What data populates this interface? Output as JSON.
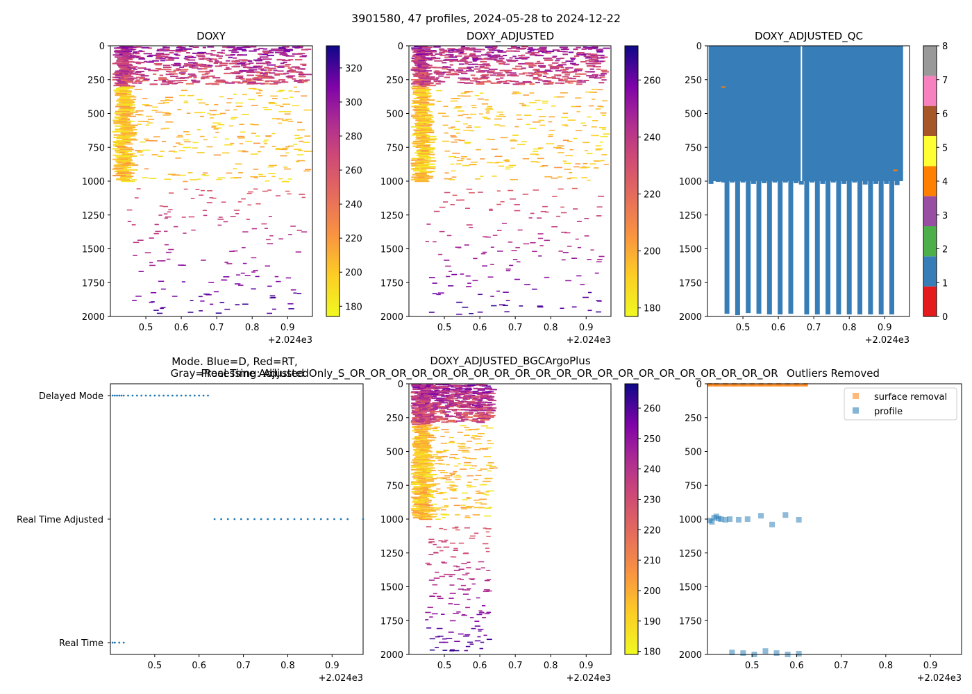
{
  "suptitle": "3901580, 47 profiles, 2024-05-28 to 2024-12-22",
  "offset_label": "+2.024e3",
  "x_ticks": [
    "0.5",
    "0.6",
    "0.7",
    "0.8",
    "0.9"
  ],
  "y_ticks": [
    "0",
    "250",
    "500",
    "750",
    "1000",
    "1250",
    "1500",
    "1750",
    "2000"
  ],
  "chart_data": [
    {
      "type": "heatmap",
      "title": "DOXY",
      "xlim": [
        0.4,
        0.97
      ],
      "ylim": [
        2000,
        0
      ],
      "colorbar": {
        "min": 174,
        "max": 333,
        "ticks": [
          "180",
          "200",
          "220",
          "240",
          "260",
          "280",
          "300",
          "320"
        ]
      },
      "data_extent": {
        "x": [
          0.405,
          0.95
        ],
        "y": [
          0,
          2000
        ]
      }
    },
    {
      "type": "heatmap",
      "title": "DOXY_ADJUSTED",
      "xlim": [
        0.4,
        0.97
      ],
      "ylim": [
        2000,
        0
      ],
      "colorbar": {
        "min": 177,
        "max": 272,
        "ticks": [
          "180",
          "200",
          "220",
          "240",
          "260"
        ]
      },
      "data_extent": {
        "x": [
          0.405,
          0.95
        ],
        "y": [
          0,
          2000
        ]
      }
    },
    {
      "type": "bar",
      "title": "DOXY_ADJUSTED_QC",
      "xlim": [
        0.4,
        0.97
      ],
      "ylim": [
        2000,
        0
      ],
      "qc_classes": [
        "0",
        "1",
        "2",
        "3",
        "4",
        "5",
        "6",
        "7",
        "8"
      ],
      "colorbar_ticks": [
        "0",
        "1",
        "2",
        "3",
        "4",
        "5",
        "6",
        "7",
        "8"
      ],
      "qc_colors": [
        "#e41a1c",
        "#377eb8",
        "#4daf4a",
        "#984ea3",
        "#ff7f00",
        "#ffff33",
        "#a65628",
        "#f781bf",
        "#999999"
      ],
      "profile_bottom_depth": [
        [
          0.41,
          1020
        ],
        [
          0.43,
          1005
        ],
        [
          0.445,
          1010
        ],
        [
          0.455,
          1980
        ],
        [
          0.47,
          1010
        ],
        [
          0.485,
          1990
        ],
        [
          0.5,
          1010
        ],
        [
          0.515,
          1975
        ],
        [
          0.53,
          1020
        ],
        [
          0.545,
          1980
        ],
        [
          0.56,
          1015
        ],
        [
          0.575,
          1985
        ],
        [
          0.59,
          1010
        ],
        [
          0.605,
          1985
        ],
        [
          0.62,
          1010
        ],
        [
          0.635,
          1980
        ],
        [
          0.65,
          1015
        ],
        [
          0.665,
          1025
        ],
        [
          0.68,
          1985
        ],
        [
          0.695,
          1010
        ],
        [
          0.71,
          1985
        ],
        [
          0.725,
          1020
        ],
        [
          0.74,
          1985
        ],
        [
          0.755,
          1010
        ],
        [
          0.77,
          1985
        ],
        [
          0.785,
          1020
        ],
        [
          0.8,
          1985
        ],
        [
          0.815,
          1010
        ],
        [
          0.83,
          1985
        ],
        [
          0.845,
          1025
        ],
        [
          0.86,
          1985
        ],
        [
          0.875,
          1020
        ],
        [
          0.89,
          1985
        ],
        [
          0.905,
          1020
        ],
        [
          0.92,
          1985
        ],
        [
          0.935,
          1030
        ],
        [
          0.945,
          1000
        ]
      ],
      "flag4_marks": [
        [
          0.445,
          305
        ],
        [
          0.93,
          920
        ]
      ]
    },
    {
      "type": "scatter",
      "title": "Mode. Blue=D, Red=RT,\nGray=Real Time Adjusted",
      "title_lines": [
        "Mode. Blue=D, Red=RT,",
        "Gray=Real Time Adjusted"
      ],
      "xlim": [
        0.4,
        0.97
      ],
      "categories": [
        "Delayed Mode",
        "Real Time Adjusted",
        "Real Time"
      ],
      "series": [
        {
          "name": "Delayed Mode",
          "x": [
            0.405,
            0.41,
            0.415,
            0.42,
            0.425,
            0.43,
            0.44,
            0.45,
            0.46,
            0.47,
            0.48,
            0.49,
            0.5,
            0.51,
            0.52,
            0.53,
            0.54,
            0.55,
            0.56,
            0.57,
            0.58,
            0.59,
            0.6,
            0.61,
            0.62
          ]
        },
        {
          "name": "Real Time Adjusted",
          "x": [
            0.635,
            0.65,
            0.665,
            0.68,
            0.695,
            0.71,
            0.725,
            0.74,
            0.755,
            0.77,
            0.785,
            0.8,
            0.815,
            0.83,
            0.845,
            0.86,
            0.875,
            0.89,
            0.905,
            0.92,
            0.935,
            0.97
          ]
        },
        {
          "name": "Real Time",
          "x": [
            0.405,
            0.41,
            0.42,
            0.43
          ]
        }
      ]
    },
    {
      "type": "heatmap",
      "title": "DOXY_ADJUSTED_BGCArgoPlus",
      "xlim": [
        0.4,
        0.97
      ],
      "ylim": [
        2000,
        0
      ],
      "colorbar": {
        "min": 179,
        "max": 268,
        "ticks": [
          "180",
          "190",
          "200",
          "210",
          "220",
          "230",
          "240",
          "250",
          "260"
        ]
      },
      "data_extent": {
        "x": [
          0.405,
          0.63
        ],
        "y": [
          0,
          2000
        ]
      }
    },
    {
      "type": "scatter",
      "title": "Processing: AdjustedOnly_S_OR_OR_OR_OR_OR_OR_OR_OR_OR_OR_OR_OR_OR_OR_OR_OR_OR_OR_OR_OR_OR",
      "title_overlap": "Outliers Removed",
      "xlim": [
        0.4,
        0.97
      ],
      "ylim": [
        2000,
        0
      ],
      "legend": [
        "surface removal",
        "profile"
      ],
      "series": [
        {
          "name": "surface removal",
          "color": "#ff7f0e",
          "points": [
            [
              0.405,
              5
            ],
            [
              0.42,
              5
            ],
            [
              0.44,
              5
            ],
            [
              0.46,
              5
            ],
            [
              0.48,
              5
            ],
            [
              0.5,
              5
            ],
            [
              0.52,
              5
            ],
            [
              0.54,
              5
            ],
            [
              0.56,
              5
            ],
            [
              0.58,
              5
            ],
            [
              0.6,
              5
            ],
            [
              0.62,
              5
            ]
          ]
        },
        {
          "name": "profile",
          "color": "#1f77b4",
          "points": [
            [
              0.405,
              1010
            ],
            [
              0.41,
              1020
            ],
            [
              0.415,
              990
            ],
            [
              0.42,
              980
            ],
            [
              0.425,
              995
            ],
            [
              0.43,
              1000
            ],
            [
              0.44,
              1005
            ],
            [
              0.45,
              1000
            ],
            [
              0.47,
              1005
            ],
            [
              0.49,
              1000
            ],
            [
              0.52,
              975
            ],
            [
              0.545,
              1040
            ],
            [
              0.575,
              970
            ],
            [
              0.605,
              1005
            ],
            [
              0.455,
              1985
            ],
            [
              0.48,
              1990
            ],
            [
              0.505,
              2000
            ],
            [
              0.53,
              1975
            ],
            [
              0.555,
              1990
            ],
            [
              0.58,
              2000
            ],
            [
              0.605,
              1995
            ]
          ]
        }
      ]
    }
  ]
}
